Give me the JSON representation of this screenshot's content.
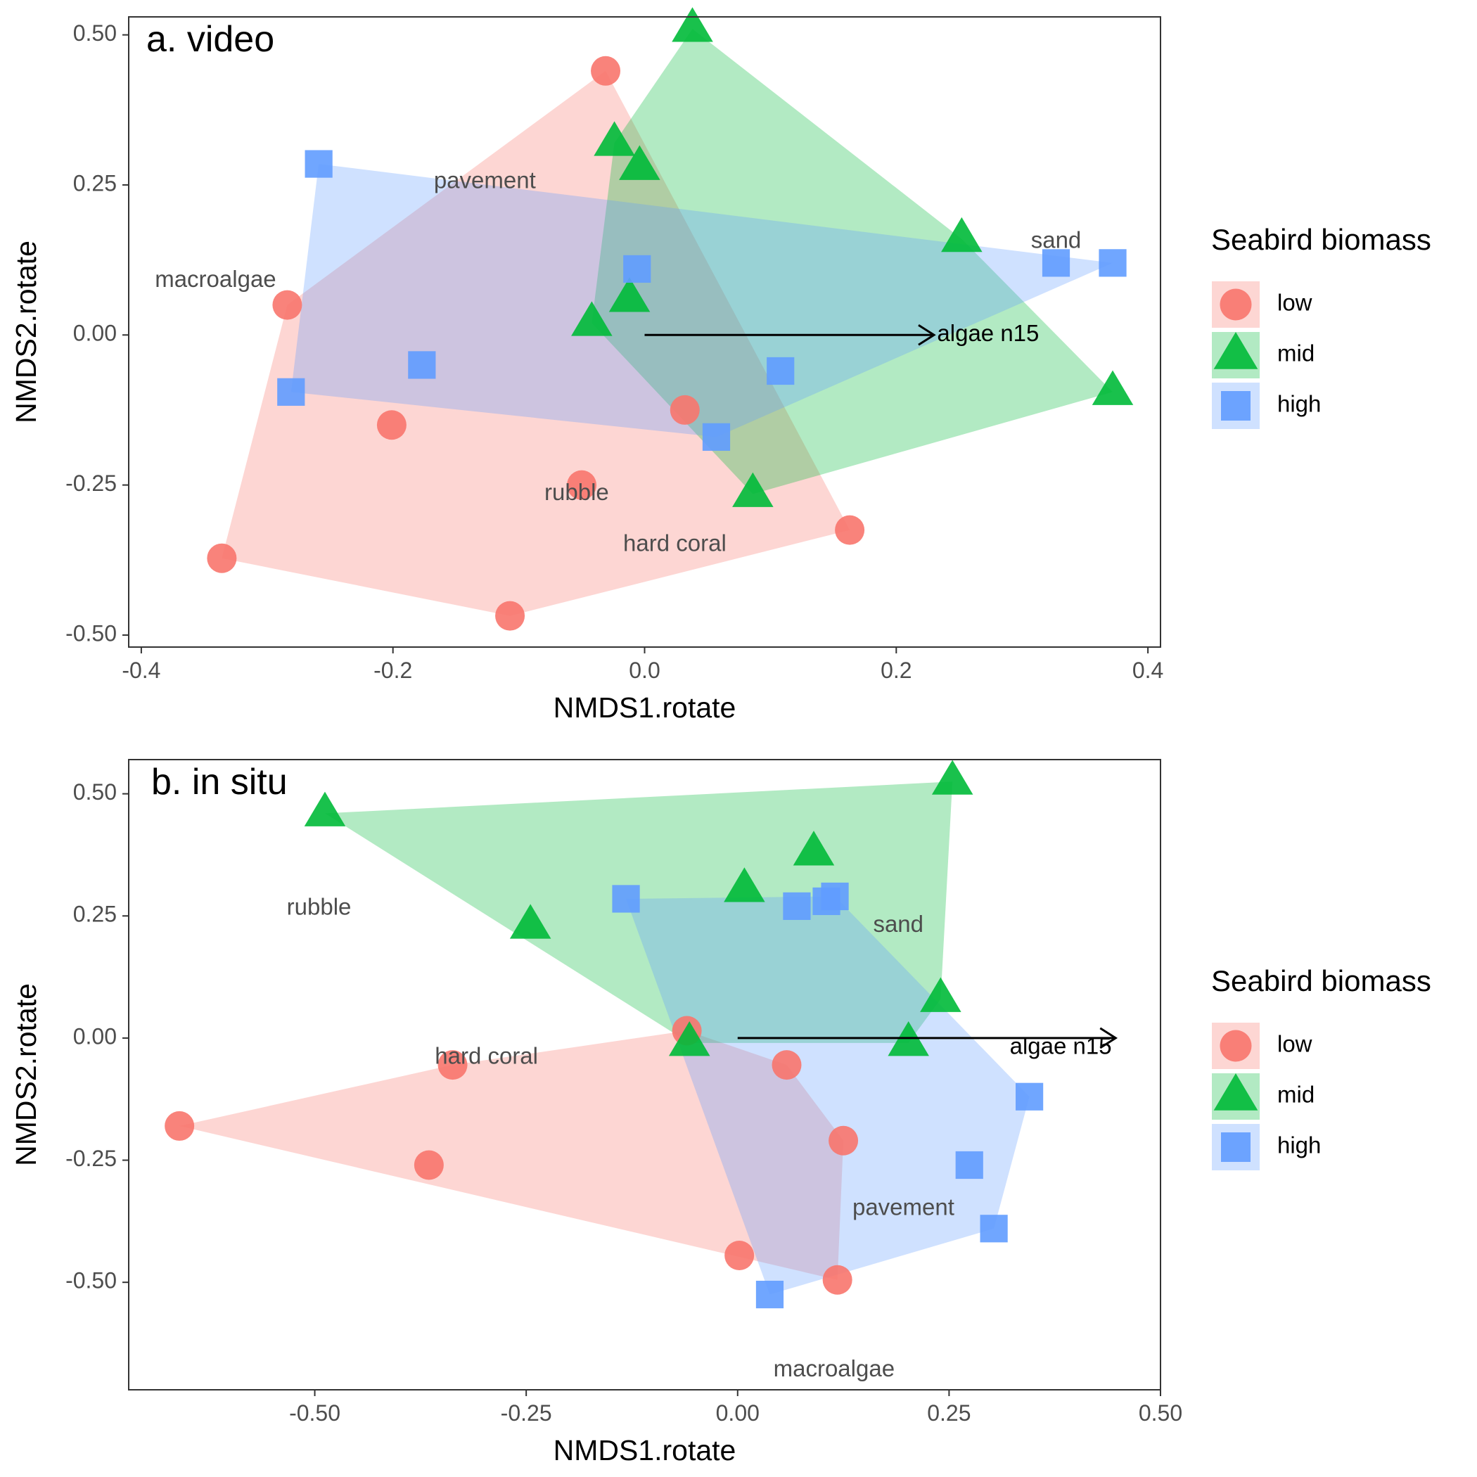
{
  "legend": {
    "title": "Seabird biomass",
    "items": [
      {
        "key": "low",
        "label": "low",
        "shape": "circle",
        "color": "#F8766D"
      },
      {
        "key": "mid",
        "label": "mid",
        "shape": "triangle",
        "color": "#00BA38"
      },
      {
        "key": "high",
        "label": "high",
        "shape": "square",
        "color": "#619CFF"
      }
    ]
  },
  "chart_data": [
    {
      "type": "scatter",
      "title": "a. video",
      "xlabel": "NMDS1.rotate",
      "ylabel": "NMDS2.rotate",
      "xlim": [
        -0.41,
        0.41
      ],
      "ylim": [
        -0.52,
        0.53
      ],
      "xticks": [
        -0.4,
        -0.2,
        0.0,
        0.2,
        0.4
      ],
      "xtick_labels": [
        "-0.4",
        "-0.2",
        "0.0",
        "0.2",
        "0.4"
      ],
      "yticks": [
        -0.5,
        -0.25,
        0.0,
        0.25,
        0.5
      ],
      "ytick_labels": [
        "-0.50",
        "-0.25",
        "0.00",
        "0.25",
        "0.50"
      ],
      "grid": false,
      "legend_position": "right",
      "series": [
        {
          "name": "low",
          "points": [
            [
              -0.031,
              0.44
            ],
            [
              -0.284,
              0.05
            ],
            [
              -0.201,
              -0.15
            ],
            [
              -0.05,
              -0.25
            ],
            [
              0.032,
              -0.125
            ],
            [
              -0.336,
              -0.372
            ],
            [
              -0.107,
              -0.468
            ],
            [
              0.163,
              -0.325
            ]
          ]
        },
        {
          "name": "mid",
          "points": [
            [
              0.038,
              0.51
            ],
            [
              -0.024,
              0.32
            ],
            [
              -0.004,
              0.28
            ],
            [
              0.252,
              0.16
            ],
            [
              -0.012,
              0.06
            ],
            [
              -0.042,
              0.02
            ],
            [
              0.372,
              -0.095
            ],
            [
              0.086,
              -0.265
            ]
          ]
        },
        {
          "name": "high",
          "points": [
            [
              -0.259,
              0.285
            ],
            [
              -0.006,
              0.11
            ],
            [
              0.327,
              0.12
            ],
            [
              0.372,
              0.12
            ],
            [
              -0.177,
              -0.05
            ],
            [
              -0.281,
              -0.095
            ],
            [
              0.108,
              -0.06
            ],
            [
              0.057,
              -0.17
            ]
          ]
        }
      ],
      "env_labels": [
        {
          "text": "pavement",
          "x": -0.127,
          "y": 0.255
        },
        {
          "text": "sand",
          "x": 0.327,
          "y": 0.155
        },
        {
          "text": "macroalgae",
          "x": -0.341,
          "y": 0.09
        },
        {
          "text": "rubble",
          "x": -0.054,
          "y": -0.265
        },
        {
          "text": "hard coral",
          "x": 0.024,
          "y": -0.35
        }
      ],
      "vectors": [
        {
          "label": "algae n15",
          "x": 0.23,
          "y": 0.0,
          "label_x": 0.273,
          "label_y": 0.0
        }
      ]
    },
    {
      "type": "scatter",
      "title": "b. in situ",
      "xlabel": "NMDS1.rotate",
      "ylabel": "NMDS2.rotate",
      "xlim": [
        -0.72,
        0.5
      ],
      "ylim": [
        -0.72,
        0.57
      ],
      "xticks": [
        -0.5,
        -0.25,
        0.0,
        0.25,
        0.5
      ],
      "xtick_labels": [
        "-0.50",
        "-0.25",
        "0.00",
        "0.25",
        "0.50"
      ],
      "yticks": [
        -0.5,
        -0.25,
        0.0,
        0.25,
        0.5
      ],
      "ytick_labels": [
        "-0.50",
        "-0.25",
        "0.00",
        "0.25",
        "0.50"
      ],
      "grid": false,
      "legend_position": "right",
      "series": [
        {
          "name": "low",
          "points": [
            [
              -0.66,
              -0.18
            ],
            [
              -0.365,
              -0.26
            ],
            [
              -0.337,
              -0.055
            ],
            [
              -0.06,
              0.015
            ],
            [
              0.058,
              -0.055
            ],
            [
              0.125,
              -0.21
            ],
            [
              0.002,
              -0.445
            ],
            [
              0.118,
              -0.495
            ]
          ]
        },
        {
          "name": "mid",
          "points": [
            [
              -0.488,
              0.46
            ],
            [
              0.254,
              0.525
            ],
            [
              0.09,
              0.38
            ],
            [
              0.008,
              0.305
            ],
            [
              -0.245,
              0.23
            ],
            [
              0.24,
              0.08
            ],
            [
              0.202,
              -0.01
            ],
            [
              -0.057,
              -0.01
            ]
          ]
        },
        {
          "name": "high",
          "points": [
            [
              -0.132,
              0.285
            ],
            [
              0.07,
              0.27
            ],
            [
              0.105,
              0.28
            ],
            [
              0.115,
              0.29
            ],
            [
              0.345,
              -0.12
            ],
            [
              0.274,
              -0.26
            ],
            [
              0.303,
              -0.39
            ],
            [
              0.038,
              -0.525
            ]
          ]
        }
      ],
      "env_labels": [
        {
          "text": "rubble",
          "x": -0.495,
          "y": 0.265
        },
        {
          "text": "sand",
          "x": 0.19,
          "y": 0.23
        },
        {
          "text": "hard coral",
          "x": -0.297,
          "y": -0.04
        },
        {
          "text": "pavement",
          "x": 0.196,
          "y": -0.35
        },
        {
          "text": "macroalgae",
          "x": 0.114,
          "y": -0.68
        }
      ],
      "vectors": [
        {
          "label": "algae n15",
          "x": 0.447,
          "y": 0.0,
          "label_x": 0.382,
          "label_y": -0.02
        }
      ]
    }
  ]
}
